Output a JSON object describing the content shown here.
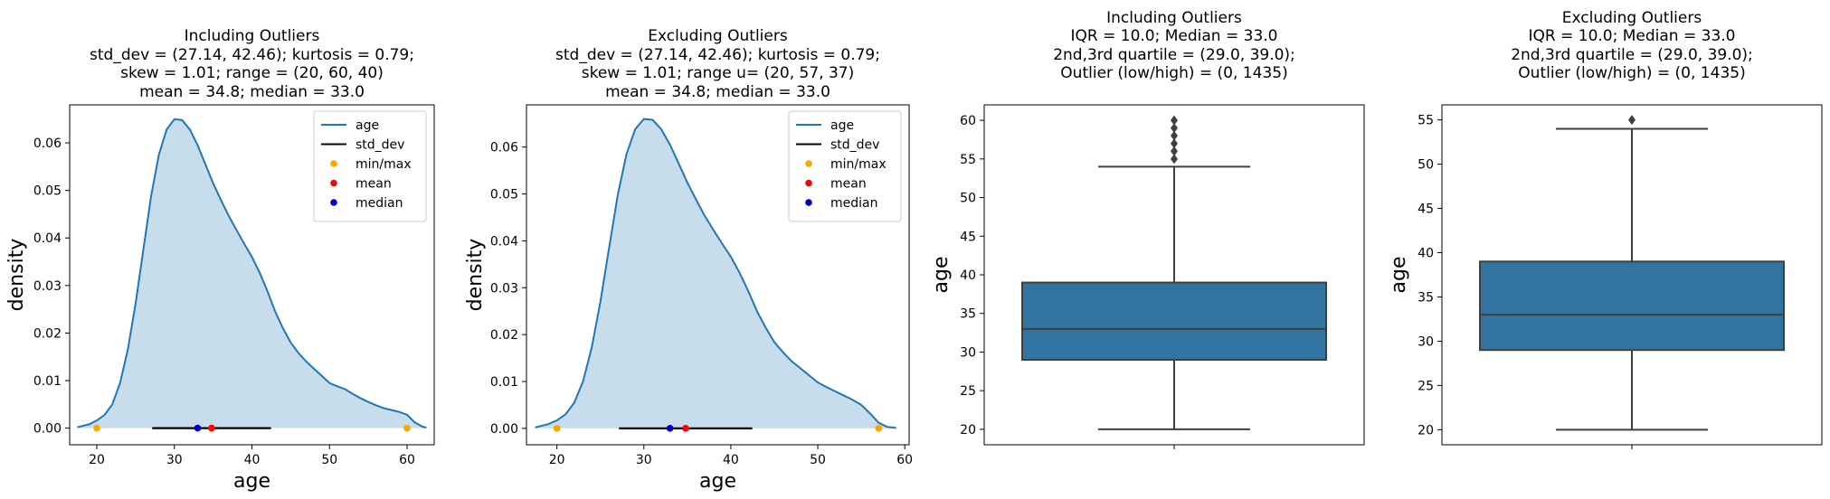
{
  "figure": {
    "background": "#ffffff"
  },
  "chart_data": [
    {
      "type": "area",
      "title": [
        "Including Outliers",
        "std_dev = (27.14, 42.46); kurtosis = 0.79;",
        "skew = 1.01; range = (20, 60, 40)",
        "mean = 34.8; median = 33.0"
      ],
      "xlabel": "age",
      "ylabel": "density",
      "xlim": [
        16.5,
        63.5
      ],
      "ylim": [
        -0.0035,
        0.068
      ],
      "xticks": [
        20,
        30,
        40,
        50,
        60
      ],
      "yticks": [
        0.0,
        0.01,
        0.02,
        0.03,
        0.04,
        0.05,
        0.06
      ],
      "ytick_labels": [
        "0.00",
        "0.01",
        "0.02",
        "0.03",
        "0.04",
        "0.05",
        "0.06"
      ],
      "legend": {
        "placement": "top-right",
        "entries": [
          {
            "label": "age",
            "kind": "line",
            "color": "#1f77b4"
          },
          {
            "label": "std_dev",
            "kind": "line",
            "color": "#000000"
          },
          {
            "label": "min/max",
            "kind": "point",
            "color": "#ffa500"
          },
          {
            "label": "mean",
            "kind": "point",
            "color": "#ff0000"
          },
          {
            "label": "median",
            "kind": "point",
            "color": "#0000cd"
          }
        ]
      },
      "series": [
        {
          "name": "age",
          "x": [
            17.5,
            19,
            20,
            21,
            22,
            23,
            24,
            25,
            26,
            27,
            28,
            29,
            30,
            31,
            32,
            33,
            34,
            35,
            36,
            37,
            38,
            39,
            40,
            41,
            42,
            43,
            44,
            45,
            46,
            47,
            48,
            49,
            50,
            51,
            52,
            53,
            54,
            55,
            56,
            57,
            58,
            59,
            60,
            61,
            62,
            62.5
          ],
          "y": [
            0.0002,
            0.0008,
            0.0016,
            0.0028,
            0.005,
            0.0095,
            0.0165,
            0.0262,
            0.0375,
            0.0488,
            0.0575,
            0.0628,
            0.065,
            0.0648,
            0.0628,
            0.0595,
            0.0555,
            0.0515,
            0.048,
            0.0447,
            0.0417,
            0.0388,
            0.036,
            0.0327,
            0.0288,
            0.0245,
            0.021,
            0.018,
            0.0158,
            0.014,
            0.0125,
            0.011,
            0.0095,
            0.0088,
            0.0082,
            0.0072,
            0.0063,
            0.0055,
            0.0048,
            0.0042,
            0.0038,
            0.0034,
            0.0028,
            0.0012,
            0.0003,
            0.0001
          ]
        },
        {
          "name": "std_dev",
          "x": [
            27.14,
            42.46
          ],
          "y": [
            0,
            0
          ]
        },
        {
          "name": "min/max",
          "x": [
            20,
            60
          ],
          "y": [
            0,
            0
          ]
        },
        {
          "name": "mean",
          "x": [
            34.8
          ],
          "y": [
            0
          ]
        },
        {
          "name": "median",
          "x": [
            33.0
          ],
          "y": [
            0
          ]
        }
      ]
    },
    {
      "type": "area",
      "title": [
        "Excluding Outliers",
        "std_dev = (27.14, 42.46); kurtosis = 0.79;",
        "skew = 1.01; range u= (20, 57, 37)",
        "mean = 34.8; median = 33.0"
      ],
      "xlabel": "age",
      "ylabel": "density",
      "xlim": [
        16.5,
        60.5
      ],
      "ylim": [
        -0.0035,
        0.069
      ],
      "xticks": [
        20,
        30,
        40,
        50,
        60
      ],
      "yticks": [
        0.0,
        0.01,
        0.02,
        0.03,
        0.04,
        0.05,
        0.06
      ],
      "ytick_labels": [
        "0.00",
        "0.01",
        "0.02",
        "0.03",
        "0.04",
        "0.05",
        "0.06"
      ],
      "legend": {
        "placement": "top-right",
        "entries": [
          {
            "label": "age",
            "kind": "line",
            "color": "#1f77b4"
          },
          {
            "label": "std_dev",
            "kind": "line",
            "color": "#000000"
          },
          {
            "label": "min/max",
            "kind": "point",
            "color": "#ffa500"
          },
          {
            "label": "mean",
            "kind": "point",
            "color": "#ff0000"
          },
          {
            "label": "median",
            "kind": "point",
            "color": "#0000cd"
          }
        ]
      },
      "series": [
        {
          "name": "age",
          "x": [
            17.5,
            19,
            20,
            21,
            22,
            23,
            24,
            25,
            26,
            27,
            28,
            29,
            30,
            31,
            32,
            33,
            34,
            35,
            36,
            37,
            38,
            39,
            40,
            41,
            42,
            43,
            44,
            45,
            46,
            47,
            48,
            49,
            50,
            51,
            52,
            53,
            54,
            55,
            56,
            57,
            58,
            59
          ],
          "y": [
            0.0002,
            0.0009,
            0.0017,
            0.003,
            0.0055,
            0.01,
            0.0172,
            0.027,
            0.0385,
            0.0498,
            0.0585,
            0.0638,
            0.066,
            0.0658,
            0.0638,
            0.0605,
            0.0565,
            0.0524,
            0.0488,
            0.0453,
            0.0423,
            0.0394,
            0.0366,
            0.0332,
            0.0293,
            0.025,
            0.0215,
            0.0184,
            0.0162,
            0.0143,
            0.0128,
            0.0113,
            0.0098,
            0.0088,
            0.0079,
            0.007,
            0.0061,
            0.005,
            0.0032,
            0.0012,
            0.0003,
            0.0001
          ]
        },
        {
          "name": "std_dev",
          "x": [
            27.14,
            42.46
          ],
          "y": [
            0,
            0
          ]
        },
        {
          "name": "min/max",
          "x": [
            20,
            57
          ],
          "y": [
            0,
            0
          ]
        },
        {
          "name": "mean",
          "x": [
            34.8
          ],
          "y": [
            0
          ]
        },
        {
          "name": "median",
          "x": [
            33.0
          ],
          "y": [
            0
          ]
        }
      ]
    },
    {
      "type": "box",
      "title": [
        "Including Outliers",
        "IQR = 10.0; Median = 33.0",
        "2nd,3rd  quartile = (29.0, 39.0);",
        "Outlier (low/high) = (0, 1435)"
      ],
      "xlabel": "",
      "ylabel": "age",
      "ylim": [
        18,
        62
      ],
      "yticks": [
        20,
        25,
        30,
        35,
        40,
        45,
        50,
        55,
        60
      ],
      "box_color": "#3274a1",
      "box": {
        "whisker_low": 20,
        "q1": 29,
        "median": 33,
        "q3": 39,
        "whisker_high": 54
      },
      "outliers": [
        55,
        56,
        57,
        58,
        59,
        60
      ]
    },
    {
      "type": "box",
      "title": [
        "Excluding Outliers",
        "IQR = 10.0; Median = 33.0",
        "2nd,3rd  quartile = (29.0, 39.0);",
        "Outlier (low/high) = (0, 1435)"
      ],
      "xlabel": "",
      "ylabel": "age",
      "ylim": [
        18.3,
        56.7
      ],
      "yticks": [
        20,
        25,
        30,
        35,
        40,
        45,
        50,
        55
      ],
      "box_color": "#3274a1",
      "box": {
        "whisker_low": 20,
        "q1": 29,
        "median": 33,
        "q3": 39,
        "whisker_high": 54
      },
      "outliers": [
        55
      ]
    }
  ]
}
